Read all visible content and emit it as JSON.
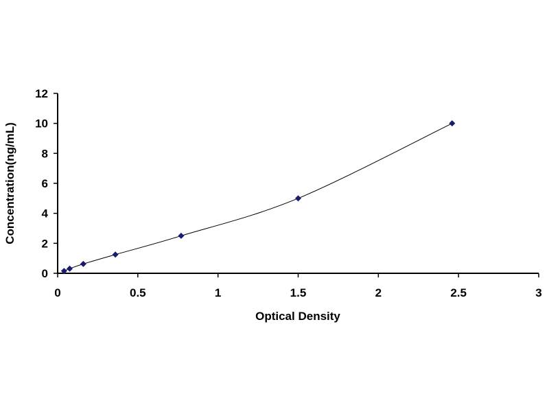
{
  "chart_data": {
    "type": "scatter",
    "title": "",
    "xlabel": "Optical Density",
    "ylabel": "Concentration(ng/mL)",
    "xlim": [
      0,
      3
    ],
    "ylim": [
      0,
      12
    ],
    "x_ticks": [
      "0",
      "0.5",
      "1",
      "1.5",
      "2",
      "2.5",
      "3"
    ],
    "y_ticks": [
      "0",
      "2",
      "4",
      "6",
      "8",
      "10",
      "12"
    ],
    "grid": false,
    "legend": "none",
    "trendline": "smooth curve through points",
    "marker": "diamond",
    "color": "#1a1a6e",
    "series": [
      {
        "x": [
          0.04,
          0.075,
          0.16,
          0.36,
          0.77,
          1.5,
          2.46
        ],
        "y": [
          0.156,
          0.312,
          0.625,
          1.25,
          2.5,
          5,
          10
        ]
      }
    ]
  }
}
